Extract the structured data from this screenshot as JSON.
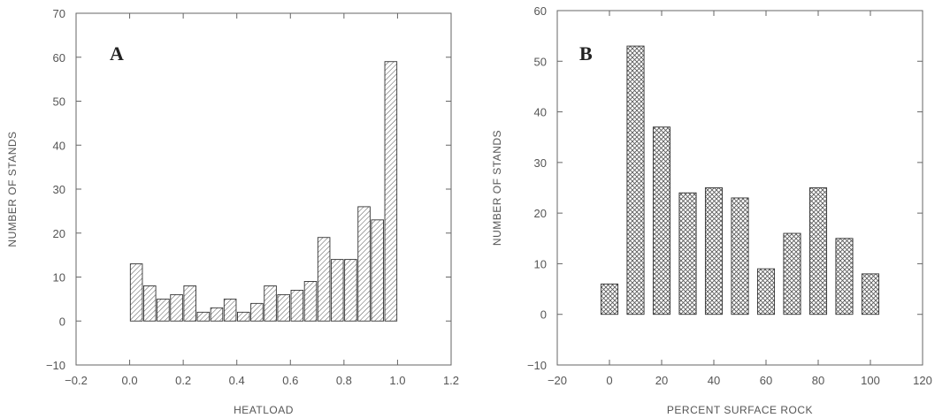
{
  "chart_data": [
    {
      "type": "bar",
      "panel_label": "A",
      "xlabel": "HEATLOAD",
      "ylabel": "NUMBER OF STANDS",
      "xlim": [
        -0.2,
        1.2
      ],
      "ylim": [
        -10,
        70
      ],
      "xticks": [
        "−0.2",
        "0.0",
        "0.2",
        "0.4",
        "0.6",
        "0.8",
        "1.0",
        "1.2"
      ],
      "xtick_values": [
        -0.2,
        0.0,
        0.2,
        0.4,
        0.6,
        0.8,
        1.0,
        1.2
      ],
      "yticks": [
        "−10",
        "0",
        "10",
        "20",
        "30",
        "40",
        "50",
        "60",
        "70"
      ],
      "ytick_values": [
        -10,
        0,
        10,
        20,
        30,
        40,
        50,
        60,
        70
      ],
      "bar_pattern": "diagonal-hatch",
      "bar_width": 0.045,
      "x": [
        0.025,
        0.075,
        0.125,
        0.175,
        0.225,
        0.275,
        0.325,
        0.375,
        0.425,
        0.475,
        0.525,
        0.575,
        0.625,
        0.675,
        0.725,
        0.775,
        0.825,
        0.875,
        0.925,
        0.975
      ],
      "values": [
        13,
        8,
        5,
        6,
        8,
        2,
        3,
        5,
        2,
        4,
        8,
        6,
        7,
        9,
        19,
        14,
        14,
        26,
        23,
        59
      ]
    },
    {
      "type": "bar",
      "panel_label": "B",
      "xlabel": "PERCENT SURFACE ROCK",
      "ylabel": "NUMBER OF STANDS",
      "xlim": [
        -20,
        120
      ],
      "ylim": [
        -10,
        60
      ],
      "xticks": [
        "−20",
        "0",
        "20",
        "40",
        "60",
        "80",
        "100",
        "120"
      ],
      "xtick_values": [
        -20,
        0,
        20,
        40,
        60,
        80,
        100,
        120
      ],
      "yticks": [
        "−10",
        "0",
        "10",
        "20",
        "30",
        "40",
        "50",
        "60"
      ],
      "ytick_values": [
        -10,
        0,
        10,
        20,
        30,
        40,
        50,
        60
      ],
      "bar_pattern": "cross-hatch",
      "bar_width": 6.5,
      "x": [
        0,
        10,
        20,
        30,
        40,
        50,
        60,
        70,
        80,
        90,
        100
      ],
      "values": [
        6,
        53,
        37,
        24,
        25,
        23,
        9,
        16,
        25,
        15,
        8
      ]
    }
  ],
  "style": {
    "axis_color": "#666666",
    "bar_stroke": "#333333",
    "hatch_color": "#555555"
  }
}
